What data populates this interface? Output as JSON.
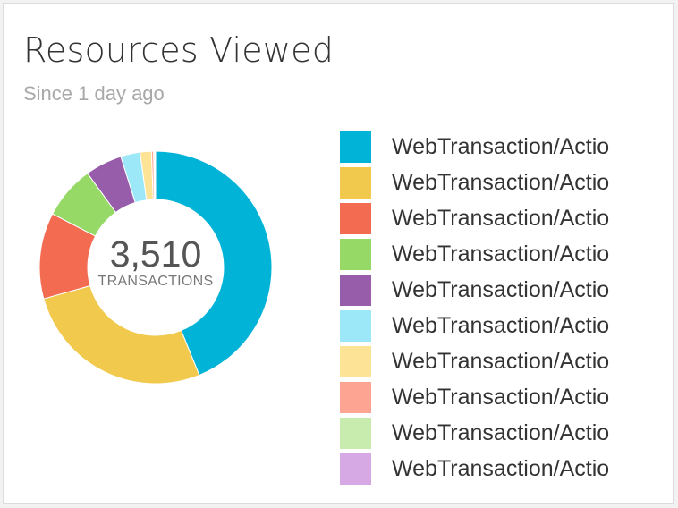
{
  "widget": {
    "title": "Resources Viewed",
    "subtitle": "Since 1 day ago"
  },
  "chart_data": {
    "type": "pie",
    "donut": true,
    "title": "Resources Viewed",
    "subtitle": "Since 1 day ago",
    "total": {
      "value": "3,510",
      "label": "TRANSACTIONS"
    },
    "legend_position": "right",
    "slices": [
      {
        "label": "WebTransaction/Actio",
        "value": 1540,
        "color": "#00b3d7"
      },
      {
        "label": "WebTransaction/Actio",
        "value": 940,
        "color": "#f0c94d"
      },
      {
        "label": "WebTransaction/Actio",
        "value": 420,
        "color": "#f36b51"
      },
      {
        "label": "WebTransaction/Actio",
        "value": 260,
        "color": "#96d966"
      },
      {
        "label": "WebTransaction/Actio",
        "value": 180,
        "color": "#985daa"
      },
      {
        "label": "WebTransaction/Actio",
        "value": 95,
        "color": "#9ce8f8"
      },
      {
        "label": "WebTransaction/Actio",
        "value": 55,
        "color": "#fde396"
      },
      {
        "label": "WebTransaction/Actio",
        "value": 10,
        "color": "#fda592"
      },
      {
        "label": "WebTransaction/Actio",
        "value": 6,
        "color": "#c8ebae"
      },
      {
        "label": "WebTransaction/Actio",
        "value": 4,
        "color": "#d7a9e4"
      }
    ]
  }
}
